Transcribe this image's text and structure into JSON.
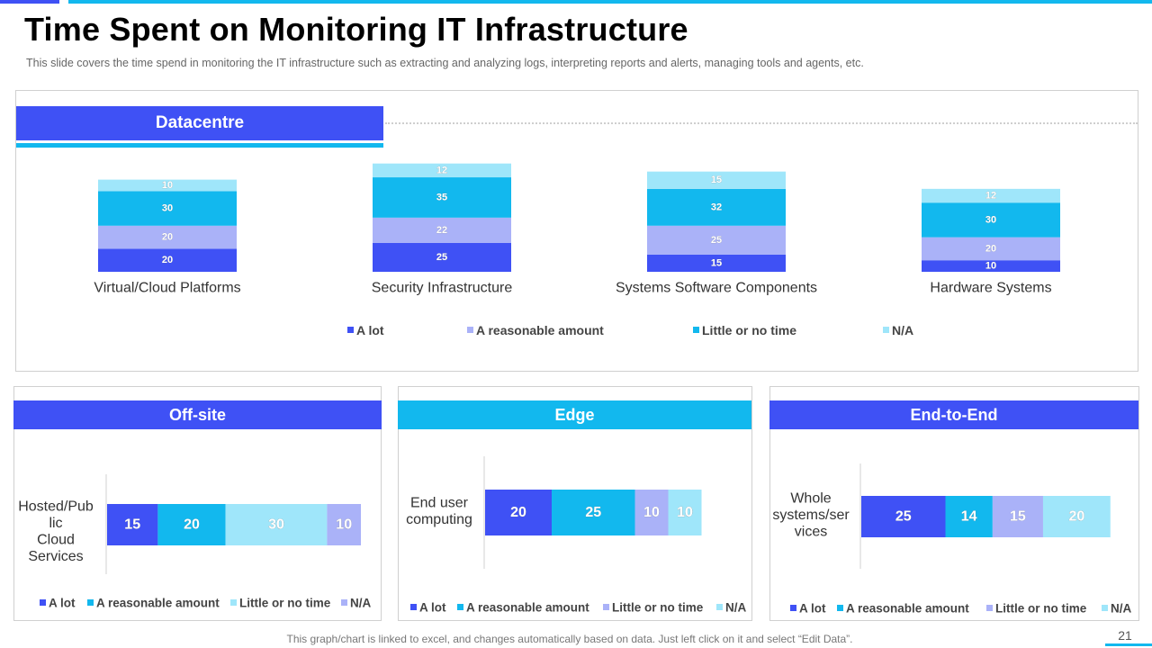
{
  "slide": {
    "title": "Time Spent on Monitoring IT Infrastructure",
    "subtitle": "This slide covers the time spend in monitoring the IT infrastructure such as extracting and analyzing logs, interpreting reports and alerts, managing tools and agents, etc.",
    "footer": "This graph/chart is linked to excel, and changes automatically based on data. Just left click on it and select “Edit Data”.",
    "page_number": "21"
  },
  "colors": {
    "a_lot": "#3f51f5",
    "reasonable": "#aab2f8",
    "little": "#12b8ee",
    "na": "#9fe6fa",
    "header_blue": "#3f51f5",
    "header_cyan": "#12b8ee"
  },
  "sections": {
    "datacentre": {
      "title": "Datacentre"
    },
    "offsite": {
      "title": "Off-site"
    },
    "edge": {
      "title": "Edge"
    },
    "e2e": {
      "title": "End-to-End"
    }
  },
  "chart_data": [
    {
      "type": "bar",
      "stacked": true,
      "orientation": "vertical",
      "section": "Datacentre",
      "categories": [
        "Virtual/Cloud Platforms",
        "Security Infrastructure",
        "Systems Software Components",
        "Hardware Systems"
      ],
      "series": [
        {
          "name": "A  lot",
          "color": "#3f51f5",
          "values": [
            20,
            25,
            15,
            10
          ]
        },
        {
          "name": "A  reasonable amount",
          "color": "#aab2f8",
          "values": [
            20,
            22,
            25,
            20
          ]
        },
        {
          "name": "Little or no time",
          "color": "#12b8ee",
          "values": [
            30,
            35,
            32,
            30
          ]
        },
        {
          "name": "N/A",
          "color": "#9fe6fa",
          "values": [
            10,
            12,
            15,
            12
          ]
        }
      ],
      "legend_position": "bottom",
      "grid": false
    },
    {
      "type": "bar",
      "stacked": true,
      "orientation": "horizontal",
      "section": "Off-site",
      "categories": [
        "Hosted/Pub lic Cloud Services"
      ],
      "series": [
        {
          "name": "A lot",
          "color": "#3f51f5",
          "values": [
            15
          ]
        },
        {
          "name": "A reasonable amount",
          "color": "#12b8ee",
          "values": [
            20
          ]
        },
        {
          "name": "Little or no time",
          "color": "#9fe6fa",
          "values": [
            30
          ]
        },
        {
          "name": "N/A",
          "color": "#aab2f8",
          "values": [
            10
          ]
        }
      ],
      "legend_position": "bottom",
      "grid": false
    },
    {
      "type": "bar",
      "stacked": true,
      "orientation": "horizontal",
      "section": "Edge",
      "categories": [
        "End user computing"
      ],
      "series": [
        {
          "name": "A  lot",
          "color": "#3f51f5",
          "values": [
            20
          ]
        },
        {
          "name": "A  reasonable amount",
          "color": "#12b8ee",
          "values": [
            25
          ]
        },
        {
          "name": "Little or no time",
          "color": "#aab2f8",
          "values": [
            10
          ]
        },
        {
          "name": "N/A",
          "color": "#9fe6fa",
          "values": [
            10
          ]
        }
      ],
      "legend_position": "bottom",
      "grid": false
    },
    {
      "type": "bar",
      "stacked": true,
      "orientation": "horizontal",
      "section": "End-to-End",
      "categories": [
        "Whole systems/ser vices"
      ],
      "series": [
        {
          "name": "A  lot",
          "color": "#3f51f5",
          "values": [
            25
          ]
        },
        {
          "name": "A  reasonable amount",
          "color": "#12b8ee",
          "values": [
            14
          ]
        },
        {
          "name": "Little or no time",
          "color": "#aab2f8",
          "values": [
            15
          ]
        },
        {
          "name": "N/A",
          "color": "#9fe6fa",
          "values": [
            20
          ]
        }
      ],
      "legend_position": "bottom",
      "grid": false
    }
  ]
}
